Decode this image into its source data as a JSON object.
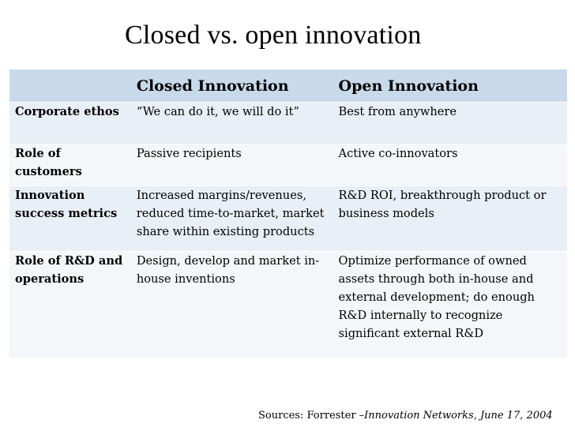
{
  "title": "Closed vs. open innovation",
  "table": {
    "headers": [
      "",
      "Closed Innovation",
      "Open Innovation"
    ],
    "rows": [
      {
        "label": "Corporate ethos",
        "closed": "“We can do it, we will do it”",
        "open": "Best from anywhere"
      },
      {
        "label": "Role of customers",
        "closed": "Passive recipients",
        "open": "Active co-innovators"
      },
      {
        "label": "Innovation success metrics",
        "closed": "Increased margins/revenues, reduced time-to-market, market share within existing products",
        "open": "R&D ROI, breakthrough product or business models"
      },
      {
        "label": "Role of R&D and operations",
        "closed": "Design, develop and market in-house inventions",
        "open": "Optimize performance of owned assets through both in-house and external development; do enough R&D internally to recognize significant external R&D"
      }
    ]
  },
  "source": {
    "prefix": "Sources: Forrester –",
    "citation": "Innovation Networks, June 17, 2004"
  },
  "colors": {
    "header_bg": "#c8d9ea",
    "row_dark": "#e9eff6",
    "row_light": "#f4f6f9"
  }
}
